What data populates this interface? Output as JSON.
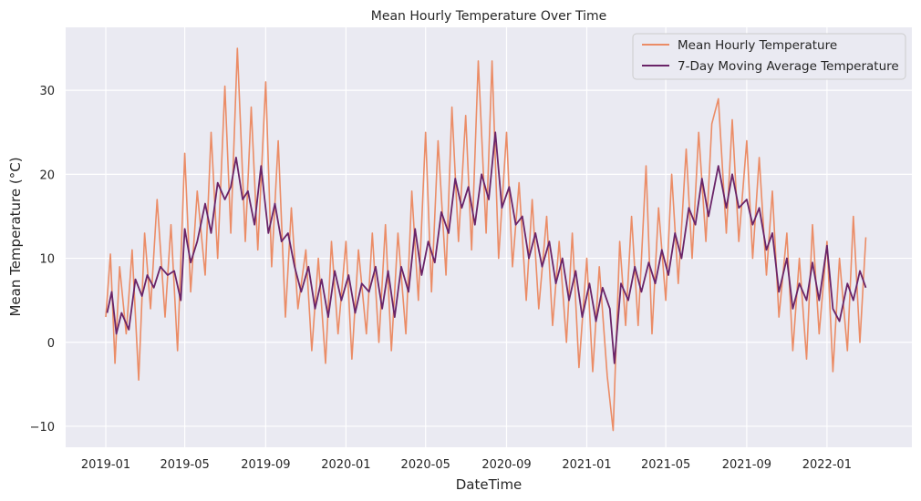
{
  "chart_data": {
    "type": "line",
    "title": "Mean Hourly Temperature Over Time",
    "xlabel": "DateTime",
    "ylabel": "Mean Temperature (°C)",
    "x_range": [
      "2018-11-01",
      "2022-05-10"
    ],
    "ylim": [
      -12.5,
      37.5
    ],
    "x_ticks": [
      {
        "date": "2019-01-01",
        "label": "2019-01"
      },
      {
        "date": "2019-05-01",
        "label": "2019-05"
      },
      {
        "date": "2019-09-01",
        "label": "2019-09"
      },
      {
        "date": "2020-01-01",
        "label": "2020-01"
      },
      {
        "date": "2020-05-01",
        "label": "2020-05"
      },
      {
        "date": "2020-09-01",
        "label": "2020-09"
      },
      {
        "date": "2021-01-01",
        "label": "2021-01"
      },
      {
        "date": "2021-05-01",
        "label": "2021-05"
      },
      {
        "date": "2021-09-01",
        "label": "2021-09"
      },
      {
        "date": "2022-01-01",
        "label": "2022-01"
      }
    ],
    "y_ticks": [
      -10,
      0,
      10,
      20,
      30
    ],
    "grid": true,
    "legend": "top-right",
    "series": [
      {
        "name": "Mean Hourly Temperature",
        "color": "#eb8c66",
        "points": [
          [
            "2019-01-01",
            3
          ],
          [
            "2019-01-08",
            10.5
          ],
          [
            "2019-01-15",
            -2.5
          ],
          [
            "2019-01-22",
            9
          ],
          [
            "2019-02-01",
            1
          ],
          [
            "2019-02-10",
            11
          ],
          [
            "2019-02-20",
            -4.5
          ],
          [
            "2019-03-01",
            13
          ],
          [
            "2019-03-10",
            4
          ],
          [
            "2019-03-20",
            17
          ],
          [
            "2019-04-01",
            3
          ],
          [
            "2019-04-10",
            14
          ],
          [
            "2019-04-20",
            -1
          ],
          [
            "2019-05-01",
            22.5
          ],
          [
            "2019-05-10",
            6
          ],
          [
            "2019-05-20",
            18
          ],
          [
            "2019-06-01",
            8
          ],
          [
            "2019-06-10",
            25
          ],
          [
            "2019-06-20",
            10
          ],
          [
            "2019-07-01",
            30.5
          ],
          [
            "2019-07-10",
            13
          ],
          [
            "2019-07-20",
            35
          ],
          [
            "2019-08-01",
            12
          ],
          [
            "2019-08-10",
            28
          ],
          [
            "2019-08-20",
            11
          ],
          [
            "2019-09-01",
            31
          ],
          [
            "2019-09-10",
            9
          ],
          [
            "2019-09-20",
            24
          ],
          [
            "2019-10-01",
            3
          ],
          [
            "2019-10-10",
            16
          ],
          [
            "2019-10-20",
            4
          ],
          [
            "2019-11-01",
            11
          ],
          [
            "2019-11-10",
            -1
          ],
          [
            "2019-11-20",
            10
          ],
          [
            "2019-12-01",
            -2.5
          ],
          [
            "2019-12-10",
            12
          ],
          [
            "2019-12-20",
            1
          ],
          [
            "2020-01-01",
            12
          ],
          [
            "2020-01-10",
            -2
          ],
          [
            "2020-01-20",
            11
          ],
          [
            "2020-02-01",
            1
          ],
          [
            "2020-02-10",
            13
          ],
          [
            "2020-02-20",
            0
          ],
          [
            "2020-03-01",
            14
          ],
          [
            "2020-03-10",
            -1
          ],
          [
            "2020-03-20",
            13
          ],
          [
            "2020-04-01",
            1
          ],
          [
            "2020-04-10",
            18
          ],
          [
            "2020-04-20",
            5
          ],
          [
            "2020-05-01",
            25
          ],
          [
            "2020-05-10",
            6
          ],
          [
            "2020-05-20",
            24
          ],
          [
            "2020-06-01",
            8
          ],
          [
            "2020-06-10",
            28
          ],
          [
            "2020-06-20",
            12
          ],
          [
            "2020-07-01",
            27
          ],
          [
            "2020-07-10",
            11
          ],
          [
            "2020-07-20",
            33.5
          ],
          [
            "2020-08-01",
            13
          ],
          [
            "2020-08-10",
            33.5
          ],
          [
            "2020-08-20",
            10
          ],
          [
            "2020-09-01",
            25
          ],
          [
            "2020-09-10",
            9
          ],
          [
            "2020-09-20",
            19
          ],
          [
            "2020-10-01",
            5
          ],
          [
            "2020-10-10",
            17
          ],
          [
            "2020-10-20",
            4
          ],
          [
            "2020-11-01",
            15
          ],
          [
            "2020-11-10",
            2
          ],
          [
            "2020-11-20",
            12
          ],
          [
            "2020-12-01",
            0
          ],
          [
            "2020-12-10",
            13
          ],
          [
            "2020-12-20",
            -3
          ],
          [
            "2021-01-01",
            10
          ],
          [
            "2021-01-10",
            -3.5
          ],
          [
            "2021-01-20",
            9
          ],
          [
            "2021-02-01",
            -4
          ],
          [
            "2021-02-10",
            -10.5
          ],
          [
            "2021-02-20",
            12
          ],
          [
            "2021-03-01",
            2
          ],
          [
            "2021-03-10",
            15
          ],
          [
            "2021-03-20",
            2
          ],
          [
            "2021-04-01",
            21
          ],
          [
            "2021-04-10",
            1
          ],
          [
            "2021-04-20",
            16
          ],
          [
            "2021-05-01",
            5
          ],
          [
            "2021-05-10",
            20
          ],
          [
            "2021-05-20",
            7
          ],
          [
            "2021-06-01",
            23
          ],
          [
            "2021-06-10",
            10
          ],
          [
            "2021-06-20",
            25
          ],
          [
            "2021-07-01",
            12
          ],
          [
            "2021-07-10",
            26
          ],
          [
            "2021-07-20",
            29
          ],
          [
            "2021-08-01",
            13
          ],
          [
            "2021-08-10",
            26.5
          ],
          [
            "2021-08-20",
            12
          ],
          [
            "2021-09-01",
            24
          ],
          [
            "2021-09-10",
            10
          ],
          [
            "2021-09-20",
            22
          ],
          [
            "2021-10-01",
            8
          ],
          [
            "2021-10-10",
            18
          ],
          [
            "2021-10-20",
            3
          ],
          [
            "2021-11-01",
            13
          ],
          [
            "2021-11-10",
            -1
          ],
          [
            "2021-11-20",
            10
          ],
          [
            "2021-12-01",
            -2
          ],
          [
            "2021-12-10",
            14
          ],
          [
            "2021-12-20",
            1
          ],
          [
            "2022-01-01",
            12
          ],
          [
            "2022-01-10",
            -3.5
          ],
          [
            "2022-01-20",
            10
          ],
          [
            "2022-02-01",
            -1
          ],
          [
            "2022-02-10",
            15
          ],
          [
            "2022-02-20",
            0
          ],
          [
            "2022-03-01",
            12.5
          ]
        ]
      },
      {
        "name": "7-Day Moving Average Temperature",
        "color": "#6a2468",
        "points": [
          [
            "2019-01-03",
            3.5
          ],
          [
            "2019-01-10",
            6
          ],
          [
            "2019-01-17",
            1
          ],
          [
            "2019-01-25",
            3.5
          ],
          [
            "2019-02-05",
            1.5
          ],
          [
            "2019-02-15",
            7.5
          ],
          [
            "2019-02-25",
            5.5
          ],
          [
            "2019-03-05",
            8
          ],
          [
            "2019-03-15",
            6.5
          ],
          [
            "2019-03-25",
            9
          ],
          [
            "2019-04-05",
            8
          ],
          [
            "2019-04-15",
            8.5
          ],
          [
            "2019-04-25",
            5
          ],
          [
            "2019-05-01",
            13.5
          ],
          [
            "2019-05-10",
            9.5
          ],
          [
            "2019-05-20",
            12
          ],
          [
            "2019-06-01",
            16.5
          ],
          [
            "2019-06-10",
            13
          ],
          [
            "2019-06-20",
            19
          ],
          [
            "2019-07-01",
            17
          ],
          [
            "2019-07-10",
            18.5
          ],
          [
            "2019-07-18",
            22
          ],
          [
            "2019-07-28",
            17
          ],
          [
            "2019-08-05",
            18
          ],
          [
            "2019-08-15",
            14
          ],
          [
            "2019-08-25",
            21
          ],
          [
            "2019-09-05",
            13
          ],
          [
            "2019-09-15",
            16.5
          ],
          [
            "2019-09-25",
            12
          ],
          [
            "2019-10-05",
            13
          ],
          [
            "2019-10-15",
            9
          ],
          [
            "2019-10-25",
            6
          ],
          [
            "2019-11-05",
            9
          ],
          [
            "2019-11-15",
            4
          ],
          [
            "2019-11-25",
            7.5
          ],
          [
            "2019-12-05",
            3
          ],
          [
            "2019-12-15",
            8.5
          ],
          [
            "2019-12-25",
            5
          ],
          [
            "2020-01-05",
            8
          ],
          [
            "2020-01-15",
            3.5
          ],
          [
            "2020-01-25",
            7
          ],
          [
            "2020-02-05",
            6
          ],
          [
            "2020-02-15",
            9
          ],
          [
            "2020-02-25",
            4
          ],
          [
            "2020-03-05",
            8.5
          ],
          [
            "2020-03-15",
            3
          ],
          [
            "2020-03-25",
            9
          ],
          [
            "2020-04-05",
            6
          ],
          [
            "2020-04-15",
            13.5
          ],
          [
            "2020-04-25",
            8
          ],
          [
            "2020-05-05",
            12
          ],
          [
            "2020-05-15",
            9.5
          ],
          [
            "2020-05-25",
            15.5
          ],
          [
            "2020-06-05",
            13
          ],
          [
            "2020-06-15",
            19.5
          ],
          [
            "2020-06-25",
            16
          ],
          [
            "2020-07-05",
            18.5
          ],
          [
            "2020-07-15",
            14
          ],
          [
            "2020-07-25",
            20
          ],
          [
            "2020-08-05",
            17
          ],
          [
            "2020-08-15",
            25
          ],
          [
            "2020-08-25",
            16
          ],
          [
            "2020-09-05",
            18.5
          ],
          [
            "2020-09-15",
            14
          ],
          [
            "2020-09-25",
            15
          ],
          [
            "2020-10-05",
            10
          ],
          [
            "2020-10-15",
            13
          ],
          [
            "2020-10-25",
            9
          ],
          [
            "2020-11-05",
            12
          ],
          [
            "2020-11-15",
            7
          ],
          [
            "2020-11-25",
            10
          ],
          [
            "2020-12-05",
            5
          ],
          [
            "2020-12-15",
            8.5
          ],
          [
            "2020-12-25",
            3
          ],
          [
            "2021-01-05",
            7
          ],
          [
            "2021-01-15",
            2.5
          ],
          [
            "2021-01-25",
            6.5
          ],
          [
            "2021-02-05",
            4
          ],
          [
            "2021-02-12",
            -2.5
          ],
          [
            "2021-02-22",
            7
          ],
          [
            "2021-03-05",
            5
          ],
          [
            "2021-03-15",
            9
          ],
          [
            "2021-03-25",
            6
          ],
          [
            "2021-04-05",
            9.5
          ],
          [
            "2021-04-15",
            7
          ],
          [
            "2021-04-25",
            11
          ],
          [
            "2021-05-05",
            8
          ],
          [
            "2021-05-15",
            13
          ],
          [
            "2021-05-25",
            10
          ],
          [
            "2021-06-05",
            16
          ],
          [
            "2021-06-15",
            14
          ],
          [
            "2021-06-25",
            19.5
          ],
          [
            "2021-07-05",
            15
          ],
          [
            "2021-07-20",
            21
          ],
          [
            "2021-08-01",
            16
          ],
          [
            "2021-08-10",
            20
          ],
          [
            "2021-08-20",
            16
          ],
          [
            "2021-09-01",
            17
          ],
          [
            "2021-09-10",
            14
          ],
          [
            "2021-09-20",
            16
          ],
          [
            "2021-10-01",
            11
          ],
          [
            "2021-10-10",
            13
          ],
          [
            "2021-10-20",
            6
          ],
          [
            "2021-11-01",
            10
          ],
          [
            "2021-11-10",
            4
          ],
          [
            "2021-11-20",
            7
          ],
          [
            "2021-12-01",
            5
          ],
          [
            "2021-12-10",
            9.5
          ],
          [
            "2021-12-20",
            5
          ],
          [
            "2022-01-01",
            11.5
          ],
          [
            "2022-01-10",
            4
          ],
          [
            "2022-01-20",
            2.5
          ],
          [
            "2022-02-01",
            7
          ],
          [
            "2022-02-10",
            5
          ],
          [
            "2022-02-20",
            8.5
          ],
          [
            "2022-03-01",
            6.5
          ]
        ]
      }
    ]
  }
}
